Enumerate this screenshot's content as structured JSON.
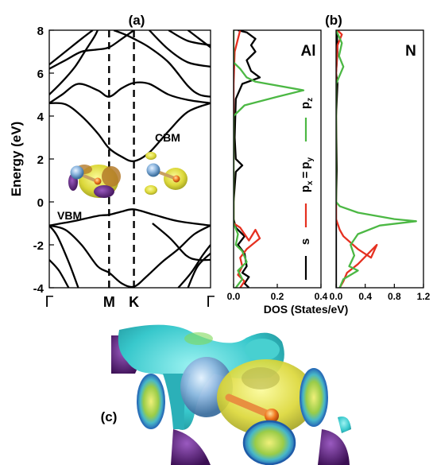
{
  "chart_data": [
    {
      "type": "line",
      "panel_label": "(a)",
      "ylabel": "Energy (eV)",
      "ylim": [
        -4,
        8
      ],
      "y_ticks": [
        -4,
        -2,
        0,
        2,
        4,
        6,
        8
      ],
      "x_ticks": [
        "Γ",
        "M",
        "K",
        "Γ"
      ],
      "x_tick_positions": [
        0,
        0.371,
        0.525,
        1
      ],
      "annotations": {
        "vbm": "VBM",
        "cbm": "CBM"
      },
      "series": [
        {
          "points": [
            [
              0,
              -1.1
            ],
            [
              0.1,
              -1.3
            ],
            [
              0.2,
              -2.0
            ],
            [
              0.3,
              -3.0
            ],
            [
              0.371,
              -3.3
            ],
            [
              0.45,
              -3.8
            ],
            [
              0.525,
              -3.95
            ],
            [
              0.6,
              -3.5
            ],
            [
              0.7,
              -2.8
            ],
            [
              0.8,
              -2.2
            ],
            [
              0.9,
              -1.5
            ],
            [
              1,
              -1.1
            ]
          ]
        },
        {
          "points": [
            [
              0,
              -1.1
            ],
            [
              0.05,
              -1.6
            ],
            [
              0.12,
              -2.8
            ],
            [
              0.18,
              -4.0
            ]
          ]
        },
        {
          "points": [
            [
              0,
              -2.7
            ],
            [
              0.06,
              -3.2
            ],
            [
              0.12,
              -4.0
            ]
          ]
        },
        {
          "points": [
            [
              0,
              -1.1
            ],
            [
              0.15,
              -0.9
            ],
            [
              0.3,
              -0.65
            ],
            [
              0.371,
              -0.6
            ],
            [
              0.45,
              -0.45
            ],
            [
              0.525,
              -0.35
            ],
            [
              0.65,
              -0.6
            ],
            [
              0.8,
              -0.9
            ],
            [
              1,
              -1.1
            ]
          ]
        },
        {
          "points": [
            [
              0.8,
              -4.0
            ],
            [
              0.88,
              -3.3
            ],
            [
              0.95,
              -2.5
            ],
            [
              1,
              -2.0
            ]
          ]
        },
        {
          "points": [
            [
              0.86,
              -4.0
            ],
            [
              0.92,
              -3.0
            ],
            [
              1,
              -2.4
            ]
          ]
        },
        {
          "points": [
            [
              0.64,
              -1.0
            ],
            [
              0.75,
              -1.7
            ],
            [
              0.85,
              -2.5
            ],
            [
              0.92,
              -2.7
            ],
            [
              1,
              -2.7
            ]
          ]
        },
        {
          "points": [
            [
              0,
              4.6
            ],
            [
              0.1,
              4.55
            ],
            [
              0.2,
              4.0
            ],
            [
              0.3,
              3.2
            ],
            [
              0.371,
              2.5
            ],
            [
              0.45,
              2.1
            ],
            [
              0.525,
              1.9
            ],
            [
              0.62,
              2.3
            ],
            [
              0.74,
              3.3
            ],
            [
              0.86,
              4.2
            ],
            [
              1,
              4.6
            ]
          ]
        },
        {
          "points": [
            [
              0,
              4.6
            ],
            [
              0.08,
              5.0
            ],
            [
              0.18,
              5.5
            ],
            [
              0.3,
              5.2
            ],
            [
              0.371,
              4.9
            ],
            [
              0.45,
              5.3
            ],
            [
              0.525,
              5.55
            ],
            [
              0.62,
              5.5
            ],
            [
              0.74,
              5.0
            ],
            [
              0.86,
              4.75
            ],
            [
              1,
              4.6
            ]
          ]
        },
        {
          "points": [
            [
              0,
              6.2
            ],
            [
              0.1,
              6.6
            ],
            [
              0.2,
              7.0
            ],
            [
              0.3,
              7.1
            ],
            [
              0.371,
              7.2
            ],
            [
              0.45,
              7.6
            ],
            [
              0.525,
              8.0
            ]
          ]
        },
        {
          "points": [
            [
              0,
              6.4
            ],
            [
              0.1,
              7.0
            ],
            [
              0.2,
              7.6
            ],
            [
              0.27,
              8.0
            ]
          ]
        },
        {
          "points": [
            [
              0,
              5.0
            ],
            [
              0.08,
              5.6
            ],
            [
              0.16,
              6.3
            ],
            [
              0.22,
              7.0
            ],
            [
              0.28,
              7.7
            ],
            [
              0.3,
              8.0
            ]
          ]
        },
        {
          "points": [
            [
              0.4,
              8.0
            ],
            [
              0.47,
              7.8
            ],
            [
              0.525,
              7.6
            ],
            [
              0.62,
              7.2
            ],
            [
              0.74,
              6.5
            ],
            [
              0.86,
              5.4
            ],
            [
              0.93,
              5.0
            ],
            [
              1,
              4.9
            ]
          ]
        },
        {
          "points": [
            [
              0.62,
              8.0
            ],
            [
              0.74,
              7.1
            ],
            [
              0.86,
              6.5
            ],
            [
              1,
              6.3
            ]
          ]
        },
        {
          "points": [
            [
              0.74,
              8.0
            ],
            [
              0.86,
              7.5
            ],
            [
              1,
              7.3
            ]
          ]
        },
        {
          "points": [
            [
              0.86,
              8.0
            ],
            [
              0.93,
              7.6
            ],
            [
              1,
              7.2
            ]
          ]
        }
      ]
    },
    {
      "type": "line",
      "panel_label": "(b)",
      "element_label": "Al",
      "xlim": [
        0,
        0.4
      ],
      "x_ticks": [
        "0.0",
        "0.2",
        "0.4"
      ],
      "ylim": [
        -4,
        8
      ],
      "legend": [
        "s",
        "p",
        "x",
        "=",
        "p",
        "y",
        "p",
        "z"
      ],
      "series": [
        {
          "color": "#000000",
          "points": [
            [
              0.02,
              8.0
            ],
            [
              0.06,
              7.9
            ],
            [
              0.1,
              7.6
            ],
            [
              0.08,
              7.3
            ],
            [
              0.1,
              7.0
            ],
            [
              0.06,
              6.6
            ],
            [
              0.08,
              6.1
            ],
            [
              0.12,
              5.8
            ],
            [
              0.04,
              5.5
            ],
            [
              0.01,
              4.8
            ],
            [
              0.005,
              3.0
            ],
            [
              0.01,
              2.0
            ],
            [
              0.04,
              1.7
            ],
            [
              0.01,
              1.4
            ],
            [
              0.0,
              0.0
            ],
            [
              0.0,
              -0.8
            ],
            [
              0.01,
              -1.2
            ],
            [
              0.05,
              -1.6
            ],
            [
              0.02,
              -2.0
            ],
            [
              0.05,
              -2.4
            ],
            [
              0.06,
              -3.0
            ],
            [
              0.04,
              -3.3
            ],
            [
              0.07,
              -3.5
            ],
            [
              0.05,
              -3.8
            ],
            [
              0.07,
              -4.0
            ]
          ]
        },
        {
          "color": "#e53020",
          "points": [
            [
              0.03,
              8.0
            ],
            [
              0.005,
              7.0
            ],
            [
              0.0,
              5.5
            ],
            [
              0.0,
              0.0
            ],
            [
              0.0,
              -1.0
            ],
            [
              0.03,
              -1.2
            ],
            [
              0.05,
              -1.5
            ],
            [
              0.07,
              -1.8
            ],
            [
              0.1,
              -1.3
            ],
            [
              0.12,
              -1.7
            ],
            [
              0.06,
              -2.2
            ],
            [
              0.03,
              -2.6
            ],
            [
              0.04,
              -3.0
            ],
            [
              0.02,
              -3.4
            ],
            [
              0.05,
              -3.7
            ],
            [
              0.03,
              -4.0
            ]
          ]
        },
        {
          "color": "#4cb844",
          "points": [
            [
              0.0,
              8.0
            ],
            [
              0.0,
              6.5
            ],
            [
              0.03,
              6.2
            ],
            [
              0.06,
              5.8
            ],
            [
              0.1,
              5.6
            ],
            [
              0.32,
              5.2
            ],
            [
              0.2,
              4.9
            ],
            [
              0.05,
              4.5
            ],
            [
              0.0,
              4.0
            ],
            [
              0.0,
              0.0
            ],
            [
              0.0,
              -1.0
            ],
            [
              0.02,
              -1.5
            ],
            [
              0.01,
              -2.0
            ],
            [
              0.04,
              -2.3
            ],
            [
              0.06,
              -2.8
            ],
            [
              0.02,
              -3.2
            ],
            [
              0.04,
              -3.6
            ],
            [
              0.01,
              -4.0
            ]
          ]
        }
      ]
    },
    {
      "type": "line",
      "element_label": "N",
      "xlim": [
        0,
        1.2
      ],
      "x_ticks": [
        "0.0",
        "0.4",
        "0.8",
        "1.2"
      ],
      "ylim": [
        -4,
        8
      ],
      "series": [
        {
          "color": "#000000",
          "points": [
            [
              0.01,
              8.0
            ],
            [
              0.02,
              7.0
            ],
            [
              0.0,
              6.0
            ],
            [
              0.02,
              5.5
            ],
            [
              0.0,
              4.0
            ],
            [
              0.01,
              1.5
            ],
            [
              0.0,
              0.0
            ],
            [
              0.0,
              -4.0
            ]
          ]
        },
        {
          "color": "#e53020",
          "points": [
            [
              0.02,
              8.0
            ],
            [
              0.08,
              7.8
            ],
            [
              0.02,
              7.3
            ],
            [
              0.0,
              6.0
            ],
            [
              0.0,
              0.0
            ],
            [
              0.0,
              -0.8
            ],
            [
              0.05,
              -1.3
            ],
            [
              0.1,
              -1.6
            ],
            [
              0.3,
              -2.2
            ],
            [
              0.48,
              -2.6
            ],
            [
              0.56,
              -2.0
            ],
            [
              0.3,
              -2.9
            ],
            [
              0.15,
              -3.3
            ],
            [
              0.1,
              -3.7
            ],
            [
              0.05,
              -4.0
            ]
          ]
        },
        {
          "color": "#4cb844",
          "points": [
            [
              0.0,
              8.0
            ],
            [
              0.08,
              7.4
            ],
            [
              0.04,
              6.8
            ],
            [
              0.1,
              6.3
            ],
            [
              0.0,
              5.5
            ],
            [
              0.0,
              0.0
            ],
            [
              0.05,
              -0.2
            ],
            [
              0.3,
              -0.5
            ],
            [
              0.8,
              -0.8
            ],
            [
              1.1,
              -0.9
            ],
            [
              0.6,
              -1.1
            ],
            [
              0.3,
              -1.5
            ],
            [
              0.2,
              -2.0
            ],
            [
              0.25,
              -2.5
            ],
            [
              0.18,
              -3.0
            ],
            [
              0.3,
              -3.2
            ],
            [
              0.1,
              -3.6
            ],
            [
              0.05,
              -4.0
            ]
          ]
        }
      ]
    }
  ],
  "xlabel_b": "DOS (States/eV)",
  "panel_c_label": "(c)",
  "colors": {
    "s": "#000000",
    "pxpy": "#e53020",
    "pz": "#4cb844",
    "isosurface_yellow": "#e8e43a",
    "isosurface_cyan": "#38c8cc",
    "isosurface_purple": "#6a2a8c",
    "atom_blue": "#8fb8e0",
    "atom_orange": "#f07a20"
  },
  "icons": [
    "al-atom-icon",
    "n-atom-icon",
    "charge-density-icon"
  ]
}
